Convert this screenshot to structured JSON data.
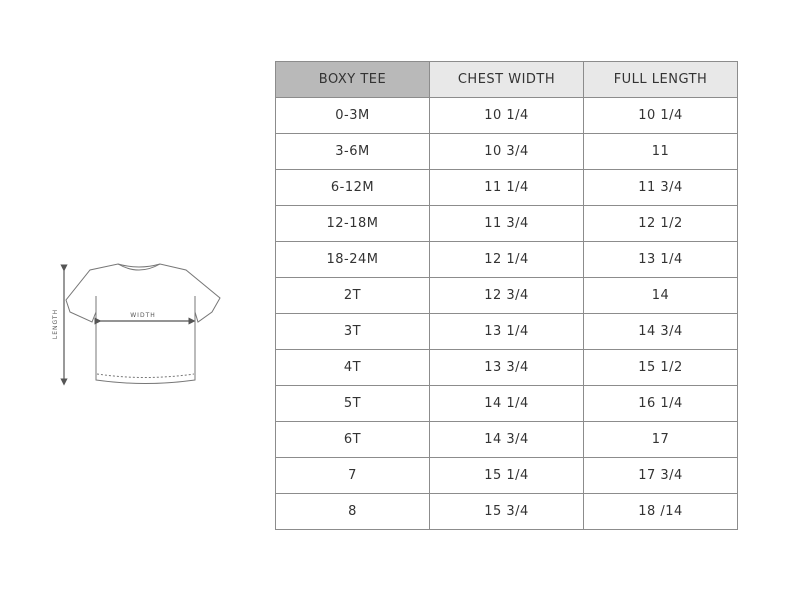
{
  "diagram": {
    "length_label": "LENGTH",
    "width_label": "WIDTH"
  },
  "table": {
    "header": [
      "BOXY TEE",
      "CHEST WIDTH",
      "FULL LENGTH"
    ],
    "rows": [
      [
        "0-3M",
        "10 1/4",
        "10 1/4"
      ],
      [
        "3-6M",
        "10 3/4",
        "11"
      ],
      [
        "6-12M",
        "11 1/4",
        "11 3/4"
      ],
      [
        "12-18M",
        "11 3/4",
        "12 1/2"
      ],
      [
        "18-24M",
        "12 1/4",
        "13 1/4"
      ],
      [
        "2T",
        "12 3/4",
        "14"
      ],
      [
        "3T",
        "13 1/4",
        "14 3/4"
      ],
      [
        "4T",
        "13 3/4",
        "15 1/2"
      ],
      [
        "5T",
        "14 1/4",
        "16 1/4"
      ],
      [
        "6T",
        "14 3/4",
        "17"
      ],
      [
        "7",
        "15 1/4",
        "17 3/4"
      ],
      [
        "8",
        "15 3/4",
        "18 /14"
      ]
    ]
  }
}
